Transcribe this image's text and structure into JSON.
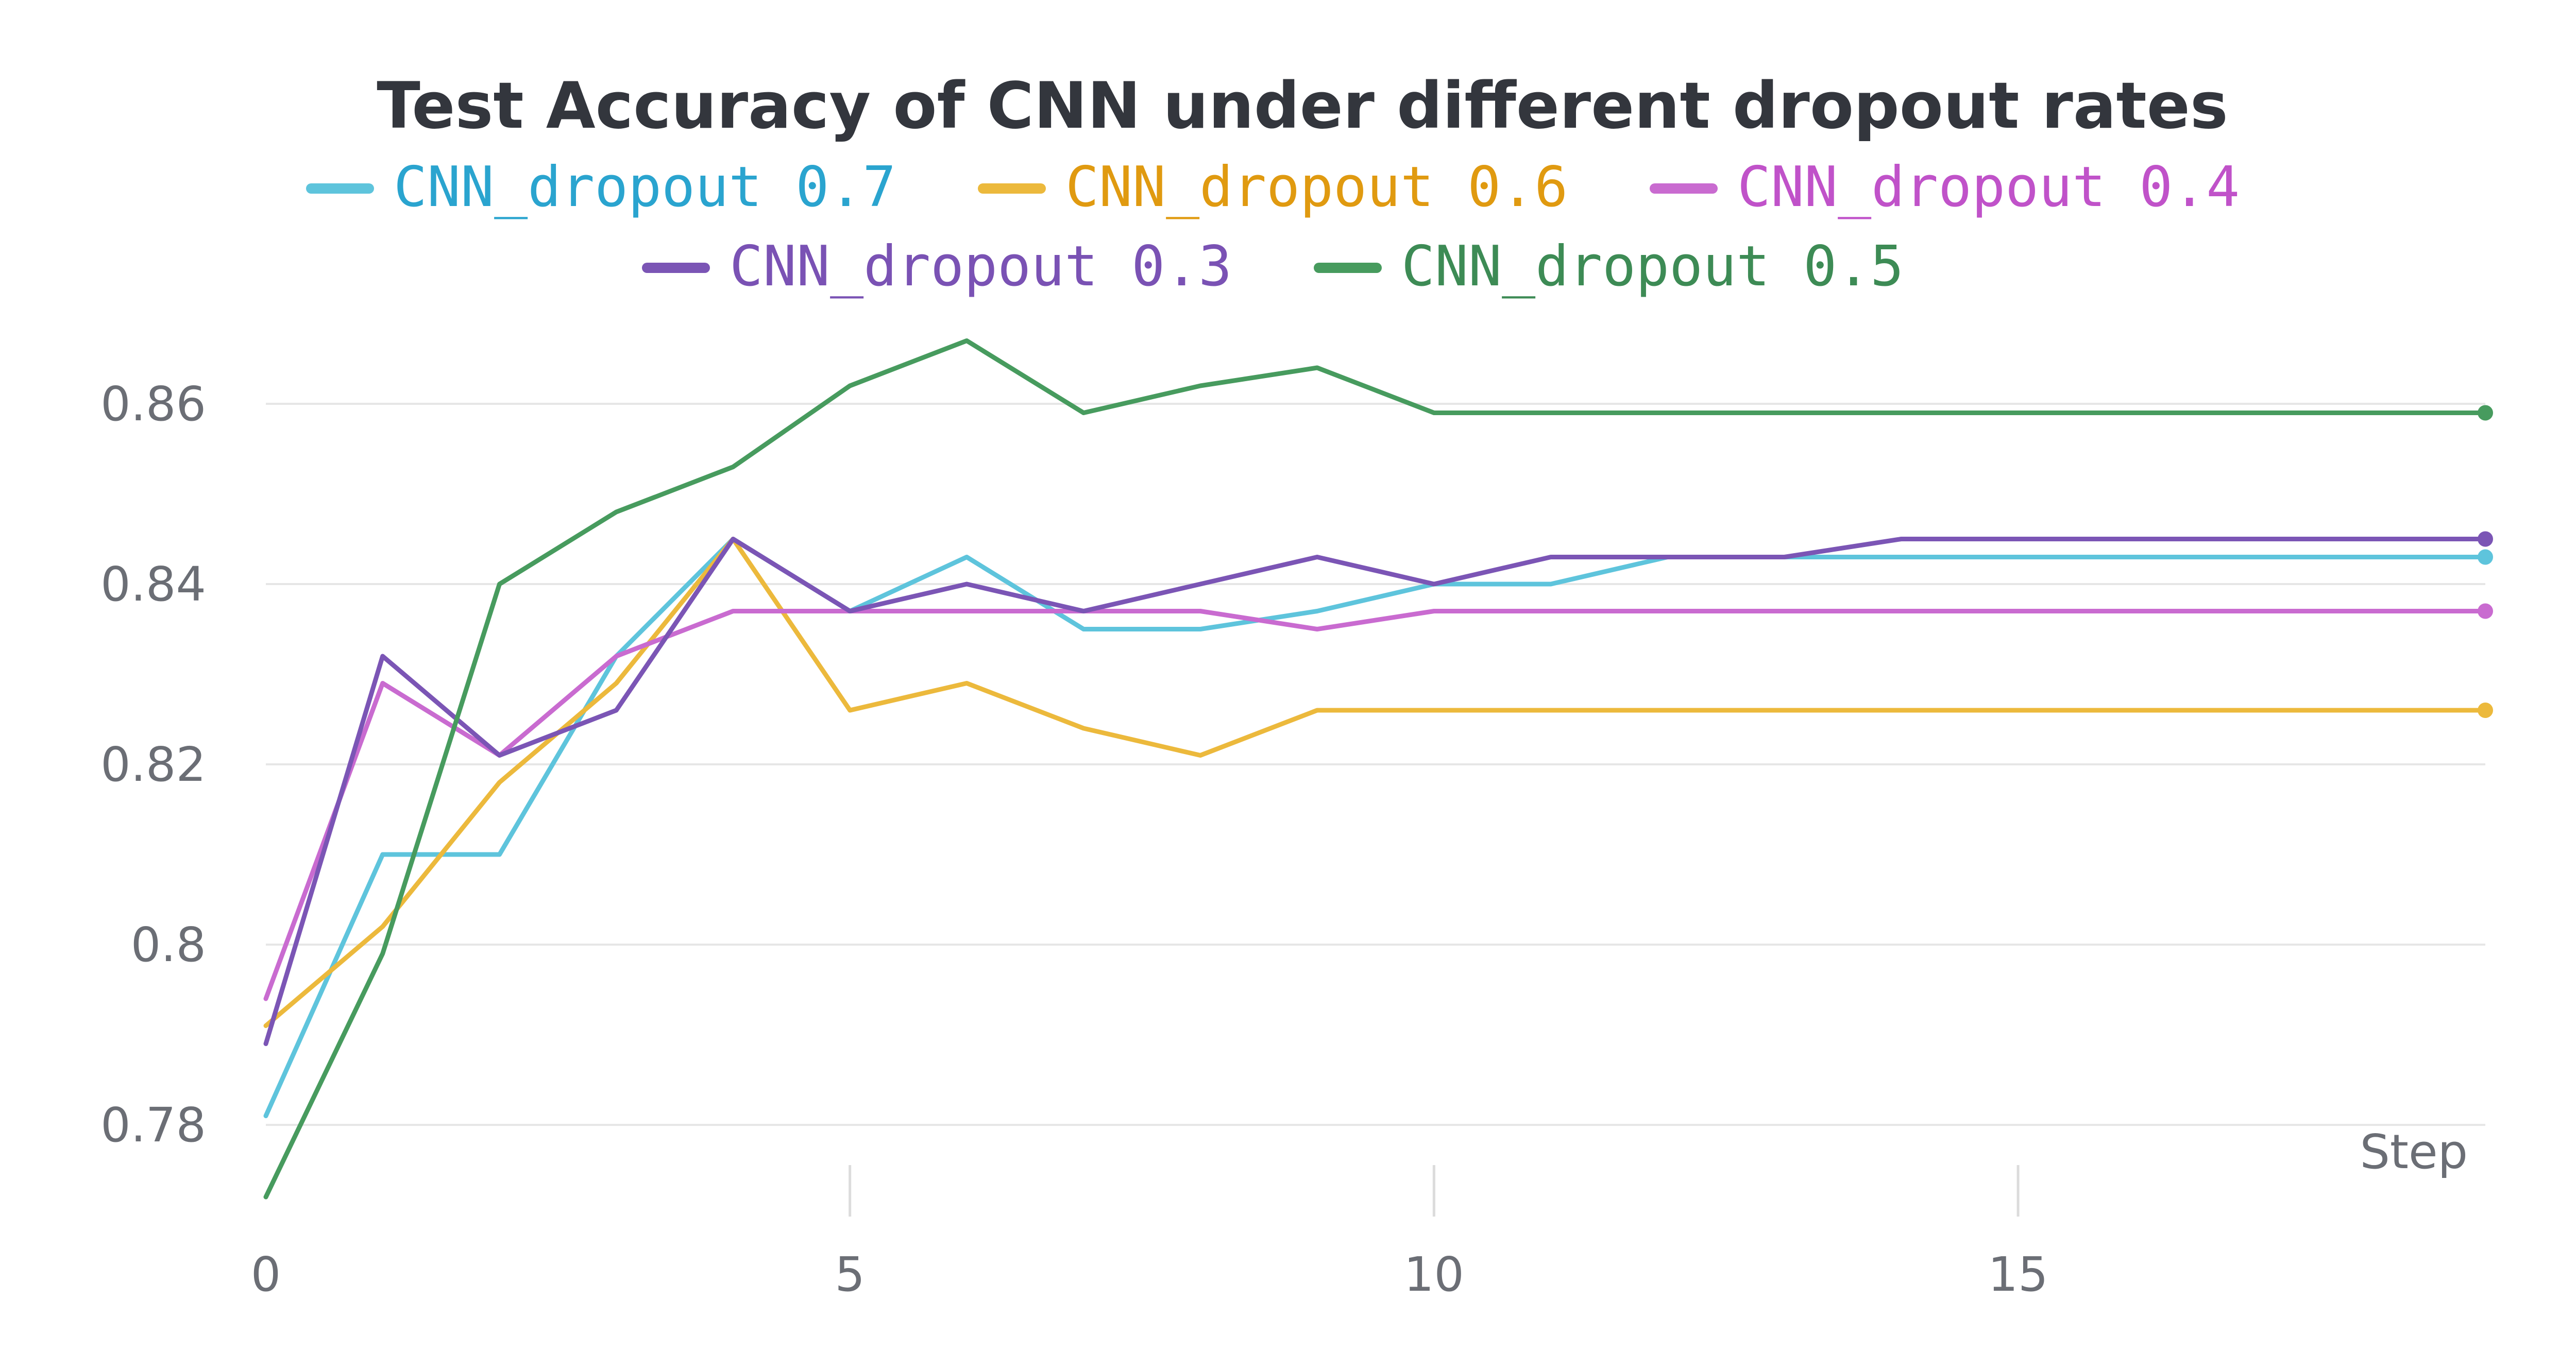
{
  "chart_data": {
    "type": "line",
    "title": "Test Accuracy of CNN under different dropout rates",
    "xlabel": "Step",
    "ylabel": "",
    "xlim": [
      0,
      19
    ],
    "ylim": [
      0.77,
      0.87
    ],
    "x_ticks": [
      0,
      5,
      10,
      15
    ],
    "y_ticks": [
      0.78,
      0.8,
      0.82,
      0.84,
      0.86
    ],
    "x_tick_labels": [
      "0",
      "5",
      "10",
      "15"
    ],
    "y_tick_labels": [
      "0.78",
      "0.8",
      "0.82",
      "0.84",
      "0.86"
    ],
    "grid": "horizontal",
    "legend_position": "top",
    "x": [
      0,
      1,
      2,
      3,
      4,
      5,
      6,
      7,
      8,
      9,
      10,
      11,
      12,
      13,
      14,
      15,
      16,
      17,
      18,
      19
    ],
    "series": [
      {
        "name": "CNN_dropout 0.7",
        "color": "#5ec4dc",
        "label_color": "#2aa4cf",
        "values": [
          0.781,
          0.81,
          0.81,
          0.832,
          0.845,
          0.837,
          0.843,
          0.835,
          0.835,
          0.837,
          0.84,
          0.84,
          0.843,
          0.843,
          0.843,
          0.843,
          0.843,
          0.843,
          0.843,
          0.843
        ]
      },
      {
        "name": "CNN_dropout 0.6",
        "color": "#ecb93c",
        "label_color": "#e09a10",
        "values": [
          0.791,
          0.802,
          0.818,
          0.829,
          0.845,
          0.826,
          0.829,
          0.824,
          0.821,
          0.826,
          0.826,
          0.826,
          0.826,
          0.826,
          0.826,
          0.826,
          0.826,
          0.826,
          0.826,
          0.826
        ]
      },
      {
        "name": "CNN_dropout 0.4",
        "color": "#c96bd0",
        "label_color": "#c052c9",
        "values": [
          0.794,
          0.829,
          0.821,
          0.832,
          0.837,
          0.837,
          0.837,
          0.837,
          0.837,
          0.835,
          0.837,
          0.837,
          0.837,
          0.837,
          0.837,
          0.837,
          0.837,
          0.837,
          0.837,
          0.837
        ]
      },
      {
        "name": "CNN_dropout 0.3",
        "color": "#7b55b5",
        "label_color": "#7a52b4",
        "values": [
          0.789,
          0.832,
          0.821,
          0.826,
          0.845,
          0.837,
          0.84,
          0.837,
          0.84,
          0.843,
          0.84,
          0.843,
          0.843,
          0.843,
          0.845,
          0.845,
          0.845,
          0.845,
          0.845,
          0.845
        ]
      },
      {
        "name": "CNN_dropout 0.5",
        "color": "#479b5e",
        "label_color": "#3d8b55",
        "values": [
          0.772,
          0.799,
          0.84,
          0.848,
          0.853,
          0.862,
          0.867,
          0.859,
          0.862,
          0.864,
          0.859,
          0.859,
          0.859,
          0.859,
          0.859,
          0.859,
          0.859,
          0.859,
          0.859,
          0.859
        ]
      }
    ]
  }
}
